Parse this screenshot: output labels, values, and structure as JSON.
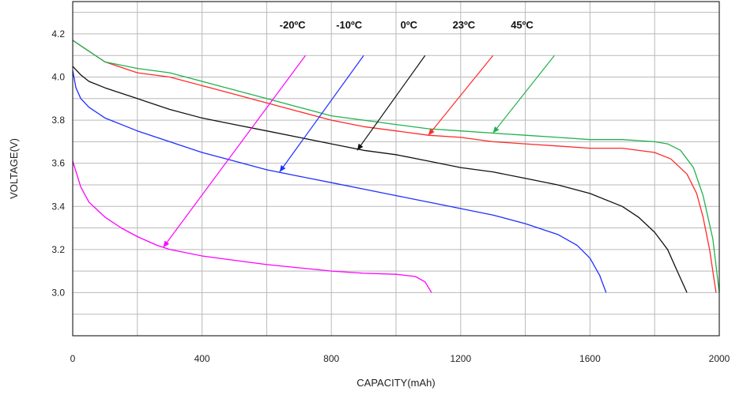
{
  "chart_data": {
    "type": "line",
    "xlabel": "CAPACITY(mAh)",
    "ylabel": "VOLTAGE(V)",
    "xlim": [
      0,
      2000
    ],
    "ylim": [
      2.8,
      4.35
    ],
    "x_ticks": [
      0,
      400,
      800,
      1200,
      1600,
      2000
    ],
    "x_tick_labels": [
      "0",
      "400",
      "800",
      "1200",
      "1600",
      "2000"
    ],
    "y_ticks": [
      3.0,
      3.2,
      3.4,
      3.6,
      3.8,
      4.0,
      4.2
    ],
    "y_tick_labels": [
      "3.0",
      "3.2",
      "3.4",
      "3.6",
      "3.8",
      "4.0",
      "4.2"
    ],
    "grid": true,
    "series": [
      {
        "name": "-20ºC",
        "color": "#ff00ff",
        "x": [
          0,
          25,
          50,
          100,
          150,
          200,
          260,
          300,
          400,
          500,
          600,
          700,
          800,
          900,
          1000,
          1060,
          1090,
          1110
        ],
        "y": [
          3.61,
          3.49,
          3.42,
          3.35,
          3.3,
          3.26,
          3.22,
          3.2,
          3.17,
          3.15,
          3.13,
          3.115,
          3.1,
          3.09,
          3.085,
          3.075,
          3.05,
          3.0
        ]
      },
      {
        "name": "-10ºC",
        "color": "#1f2fff",
        "x": [
          0,
          10,
          25,
          50,
          100,
          200,
          300,
          400,
          500,
          600,
          700,
          800,
          900,
          1000,
          1100,
          1200,
          1300,
          1400,
          1500,
          1560,
          1600,
          1630,
          1650
        ],
        "y": [
          4.03,
          3.95,
          3.9,
          3.86,
          3.81,
          3.75,
          3.7,
          3.65,
          3.61,
          3.57,
          3.54,
          3.51,
          3.48,
          3.45,
          3.42,
          3.39,
          3.36,
          3.32,
          3.27,
          3.22,
          3.16,
          3.08,
          3.0
        ]
      },
      {
        "name": "0ºC",
        "color": "#111111",
        "x": [
          0,
          25,
          50,
          100,
          200,
          300,
          400,
          500,
          600,
          700,
          800,
          900,
          1000,
          1100,
          1200,
          1300,
          1400,
          1500,
          1600,
          1700,
          1750,
          1800,
          1840,
          1870,
          1900
        ],
        "y": [
          4.05,
          4.01,
          3.98,
          3.95,
          3.9,
          3.85,
          3.81,
          3.78,
          3.75,
          3.72,
          3.69,
          3.66,
          3.64,
          3.61,
          3.58,
          3.56,
          3.53,
          3.5,
          3.46,
          3.4,
          3.35,
          3.28,
          3.2,
          3.1,
          3.0
        ]
      },
      {
        "name": "23ºC",
        "color": "#ff2a2a",
        "x": [
          0,
          50,
          100,
          200,
          300,
          400,
          500,
          600,
          700,
          800,
          900,
          1000,
          1100,
          1200,
          1300,
          1400,
          1500,
          1600,
          1700,
          1800,
          1850,
          1900,
          1930,
          1950,
          1970,
          1990
        ],
        "y": [
          4.17,
          4.12,
          4.07,
          4.02,
          4.0,
          3.96,
          3.92,
          3.88,
          3.84,
          3.8,
          3.77,
          3.75,
          3.73,
          3.72,
          3.7,
          3.69,
          3.68,
          3.67,
          3.67,
          3.65,
          3.62,
          3.55,
          3.46,
          3.35,
          3.2,
          3.0
        ]
      },
      {
        "name": "45ºC",
        "color": "#22b24c",
        "x": [
          0,
          50,
          100,
          200,
          300,
          400,
          500,
          600,
          700,
          800,
          900,
          1000,
          1100,
          1200,
          1300,
          1400,
          1500,
          1600,
          1700,
          1800,
          1840,
          1880,
          1920,
          1950,
          1980,
          2000
        ],
        "y": [
          4.17,
          4.12,
          4.07,
          4.04,
          4.02,
          3.98,
          3.94,
          3.9,
          3.86,
          3.82,
          3.8,
          3.78,
          3.76,
          3.75,
          3.74,
          3.73,
          3.72,
          3.71,
          3.71,
          3.7,
          3.69,
          3.66,
          3.58,
          3.45,
          3.25,
          3.0
        ]
      }
    ],
    "annotations": [
      {
        "text": "-20ºC",
        "label_x": 680,
        "label_y": 4.225,
        "arrow_from": [
          720,
          4.1
        ],
        "arrow_to": [
          280,
          3.21
        ],
        "color": "#ff00ff"
      },
      {
        "text": "-10ºC",
        "label_x": 855,
        "label_y": 4.225,
        "arrow_from": [
          900,
          4.1
        ],
        "arrow_to": [
          640,
          3.56
        ],
        "color": "#1f2fff"
      },
      {
        "text": "0ºC",
        "label_x": 1040,
        "label_y": 4.225,
        "arrow_from": [
          1090,
          4.1
        ],
        "arrow_to": [
          880,
          3.66
        ],
        "color": "#111111"
      },
      {
        "text": "23ºC",
        "label_x": 1210,
        "label_y": 4.225,
        "arrow_from": [
          1300,
          4.1
        ],
        "arrow_to": [
          1100,
          3.73
        ],
        "color": "#ff2a2a"
      },
      {
        "text": "45ºC",
        "label_x": 1390,
        "label_y": 4.225,
        "arrow_from": [
          1490,
          4.1
        ],
        "arrow_to": [
          1300,
          3.74
        ],
        "color": "#22b24c"
      }
    ]
  }
}
